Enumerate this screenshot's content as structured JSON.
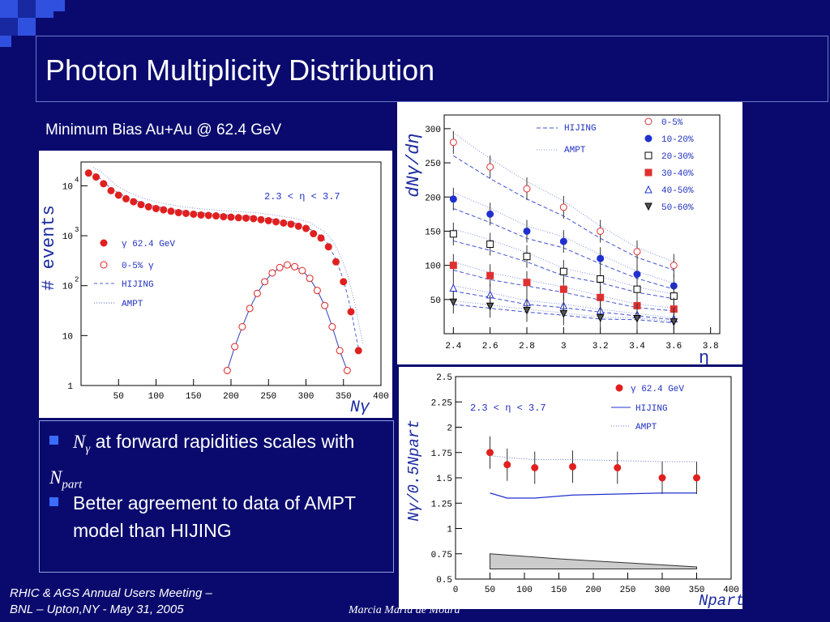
{
  "slide": {
    "title": "Photon Multiplicity Distribution",
    "subtitle": "Minimum Bias  Au+Au @ 62.4 GeV",
    "bullets": [
      {
        "sym": "N",
        "sub": "γ",
        "text": " at forward rapidities scales with ",
        "sym2": "N",
        "sub2": "part"
      },
      {
        "text": "Better agreement to data of AMPT model than HIJING"
      }
    ],
    "footer_left_1": "RHIC & AGS Annual Users Meeting –",
    "footer_left_2": "BNL – Upton,NY - May 31, 2005",
    "footer_right": "Marcia Maria de Moura"
  },
  "chart_data": [
    {
      "type": "line",
      "ylabel": "# events",
      "xlabel": "Nγ",
      "annotation": "2.3 < η < 3.7",
      "xlim": [
        0,
        400
      ],
      "ylog": true,
      "ylim": [
        1,
        30000
      ],
      "x_ticks": [
        "50",
        "100",
        "150",
        "200",
        "250",
        "300",
        "350",
        "400"
      ],
      "y_ticks": [
        {
          "v": 1,
          "t": "1"
        },
        {
          "v": 10,
          "t": "10"
        },
        {
          "v": 100,
          "t": "10",
          "sup": "2"
        },
        {
          "v": 1000,
          "t": "10",
          "sup": "3"
        },
        {
          "v": 10000,
          "t": "10",
          "sup": "4"
        }
      ],
      "legend": [
        {
          "label": "γ 62.4 GeV",
          "marker": "filled-circle"
        },
        {
          "label": "0-5% γ",
          "marker": "open-circle"
        },
        {
          "label": "HIJING",
          "style": "dashed"
        },
        {
          "label": "AMPT",
          "style": "dotted"
        }
      ],
      "series": [
        {
          "name": "γ 62.4 GeV",
          "x": [
            10,
            20,
            30,
            40,
            50,
            60,
            70,
            80,
            90,
            100,
            110,
            120,
            130,
            140,
            150,
            160,
            170,
            180,
            190,
            200,
            210,
            220,
            230,
            240,
            250,
            260,
            270,
            280,
            290,
            300,
            310,
            320,
            330,
            340,
            350,
            360,
            370
          ],
          "y": [
            18000,
            15000,
            11000,
            8000,
            6500,
            5500,
            4800,
            4200,
            3800,
            3500,
            3300,
            3100,
            2900,
            2800,
            2700,
            2600,
            2550,
            2500,
            2400,
            2350,
            2300,
            2250,
            2200,
            2100,
            2000,
            1900,
            1800,
            1700,
            1550,
            1400,
            1100,
            900,
            600,
            300,
            120,
            30,
            5
          ]
        },
        {
          "name": "0-5% γ",
          "x": [
            195,
            205,
            215,
            225,
            235,
            245,
            255,
            265,
            275,
            285,
            295,
            305,
            315,
            325,
            335,
            345,
            355
          ],
          "y": [
            2,
            6,
            15,
            35,
            70,
            120,
            180,
            230,
            260,
            240,
            200,
            140,
            80,
            40,
            15,
            5,
            2
          ]
        }
      ]
    },
    {
      "type": "scatter",
      "ylabel": "dNγ/dη",
      "xlabel": "η",
      "xlim": [
        2.35,
        3.85
      ],
      "ylim": [
        0,
        320
      ],
      "x_ticks": [
        "2.4",
        "2.6",
        "2.8",
        "3",
        "3.2",
        "3.4",
        "3.6",
        "3.8"
      ],
      "y_ticks": [
        "50",
        "100",
        "150",
        "200",
        "250",
        "300"
      ],
      "legend_models": [
        "HIJING",
        "AMPT"
      ],
      "series": [
        {
          "name": "0-5%",
          "marker": "open-circle",
          "color": "#e03030",
          "x": [
            2.4,
            2.6,
            2.8,
            3.0,
            3.2,
            3.4,
            3.6
          ],
          "y": [
            280,
            244,
            212,
            185,
            150,
            120,
            100
          ]
        },
        {
          "name": "10-20%",
          "marker": "filled-circle",
          "color": "#2030d0",
          "x": [
            2.4,
            2.6,
            2.8,
            3.0,
            3.2,
            3.4,
            3.6
          ],
          "y": [
            197,
            175,
            150,
            135,
            110,
            87,
            70
          ]
        },
        {
          "name": "20-30%",
          "marker": "open-square",
          "color": "#000000",
          "x": [
            2.4,
            2.6,
            2.8,
            3.0,
            3.2,
            3.4,
            3.6
          ],
          "y": [
            146,
            131,
            113,
            91,
            80,
            65,
            55
          ]
        },
        {
          "name": "30-40%",
          "marker": "filled-square",
          "color": "#e03030",
          "x": [
            2.4,
            2.6,
            2.8,
            3.0,
            3.2,
            3.4,
            3.6
          ],
          "y": [
            100,
            85,
            75,
            65,
            53,
            41,
            36
          ]
        },
        {
          "name": "40-50%",
          "marker": "open-triangle",
          "color": "#2030d0",
          "x": [
            2.4,
            2.6,
            2.8,
            3.0,
            3.2,
            3.4,
            3.6
          ],
          "y": [
            67,
            57,
            46,
            41,
            34,
            28,
            22
          ]
        },
        {
          "name": "50-60%",
          "marker": "filled-triangle-down",
          "color": "#000000",
          "x": [
            2.4,
            2.6,
            2.8,
            3.0,
            3.2,
            3.4,
            3.6
          ],
          "y": [
            46,
            40,
            34,
            29,
            23,
            22,
            17
          ]
        }
      ]
    },
    {
      "type": "scatter",
      "ylabel": "Nγ/0.5Npart",
      "xlabel": "Npart",
      "annotation": "2.3 < η < 3.7",
      "xlim": [
        0,
        400
      ],
      "ylim": [
        0.5,
        2.5
      ],
      "x_ticks": [
        "0",
        "50",
        "100",
        "150",
        "200",
        "250",
        "300",
        "350",
        "400"
      ],
      "y_ticks": [
        "0.5",
        "0.75",
        "1",
        "1.25",
        "1.5",
        "1.75",
        "2",
        "2.25",
        "2.5"
      ],
      "legend": [
        {
          "label": "γ  62.4 GeV",
          "marker": "filled-circle"
        },
        {
          "label": "HIJING",
          "style": "solid"
        },
        {
          "label": "AMPT",
          "style": "dotted"
        }
      ],
      "series": [
        {
          "name": "γ  62.4 GeV",
          "x": [
            50,
            75,
            115,
            170,
            235,
            300,
            350
          ],
          "y": [
            1.75,
            1.63,
            1.6,
            1.61,
            1.6,
            1.5,
            1.5
          ]
        },
        {
          "name": "HIJING",
          "x": [
            50,
            75,
            115,
            170,
            235,
            300,
            350
          ],
          "y": [
            1.35,
            1.3,
            1.3,
            1.33,
            1.34,
            1.35,
            1.35
          ]
        },
        {
          "name": "AMPT",
          "x": [
            50,
            75,
            115,
            170,
            235,
            300,
            350
          ],
          "y": [
            1.72,
            1.7,
            1.68,
            1.68,
            1.67,
            1.66,
            1.66
          ]
        }
      ]
    }
  ]
}
